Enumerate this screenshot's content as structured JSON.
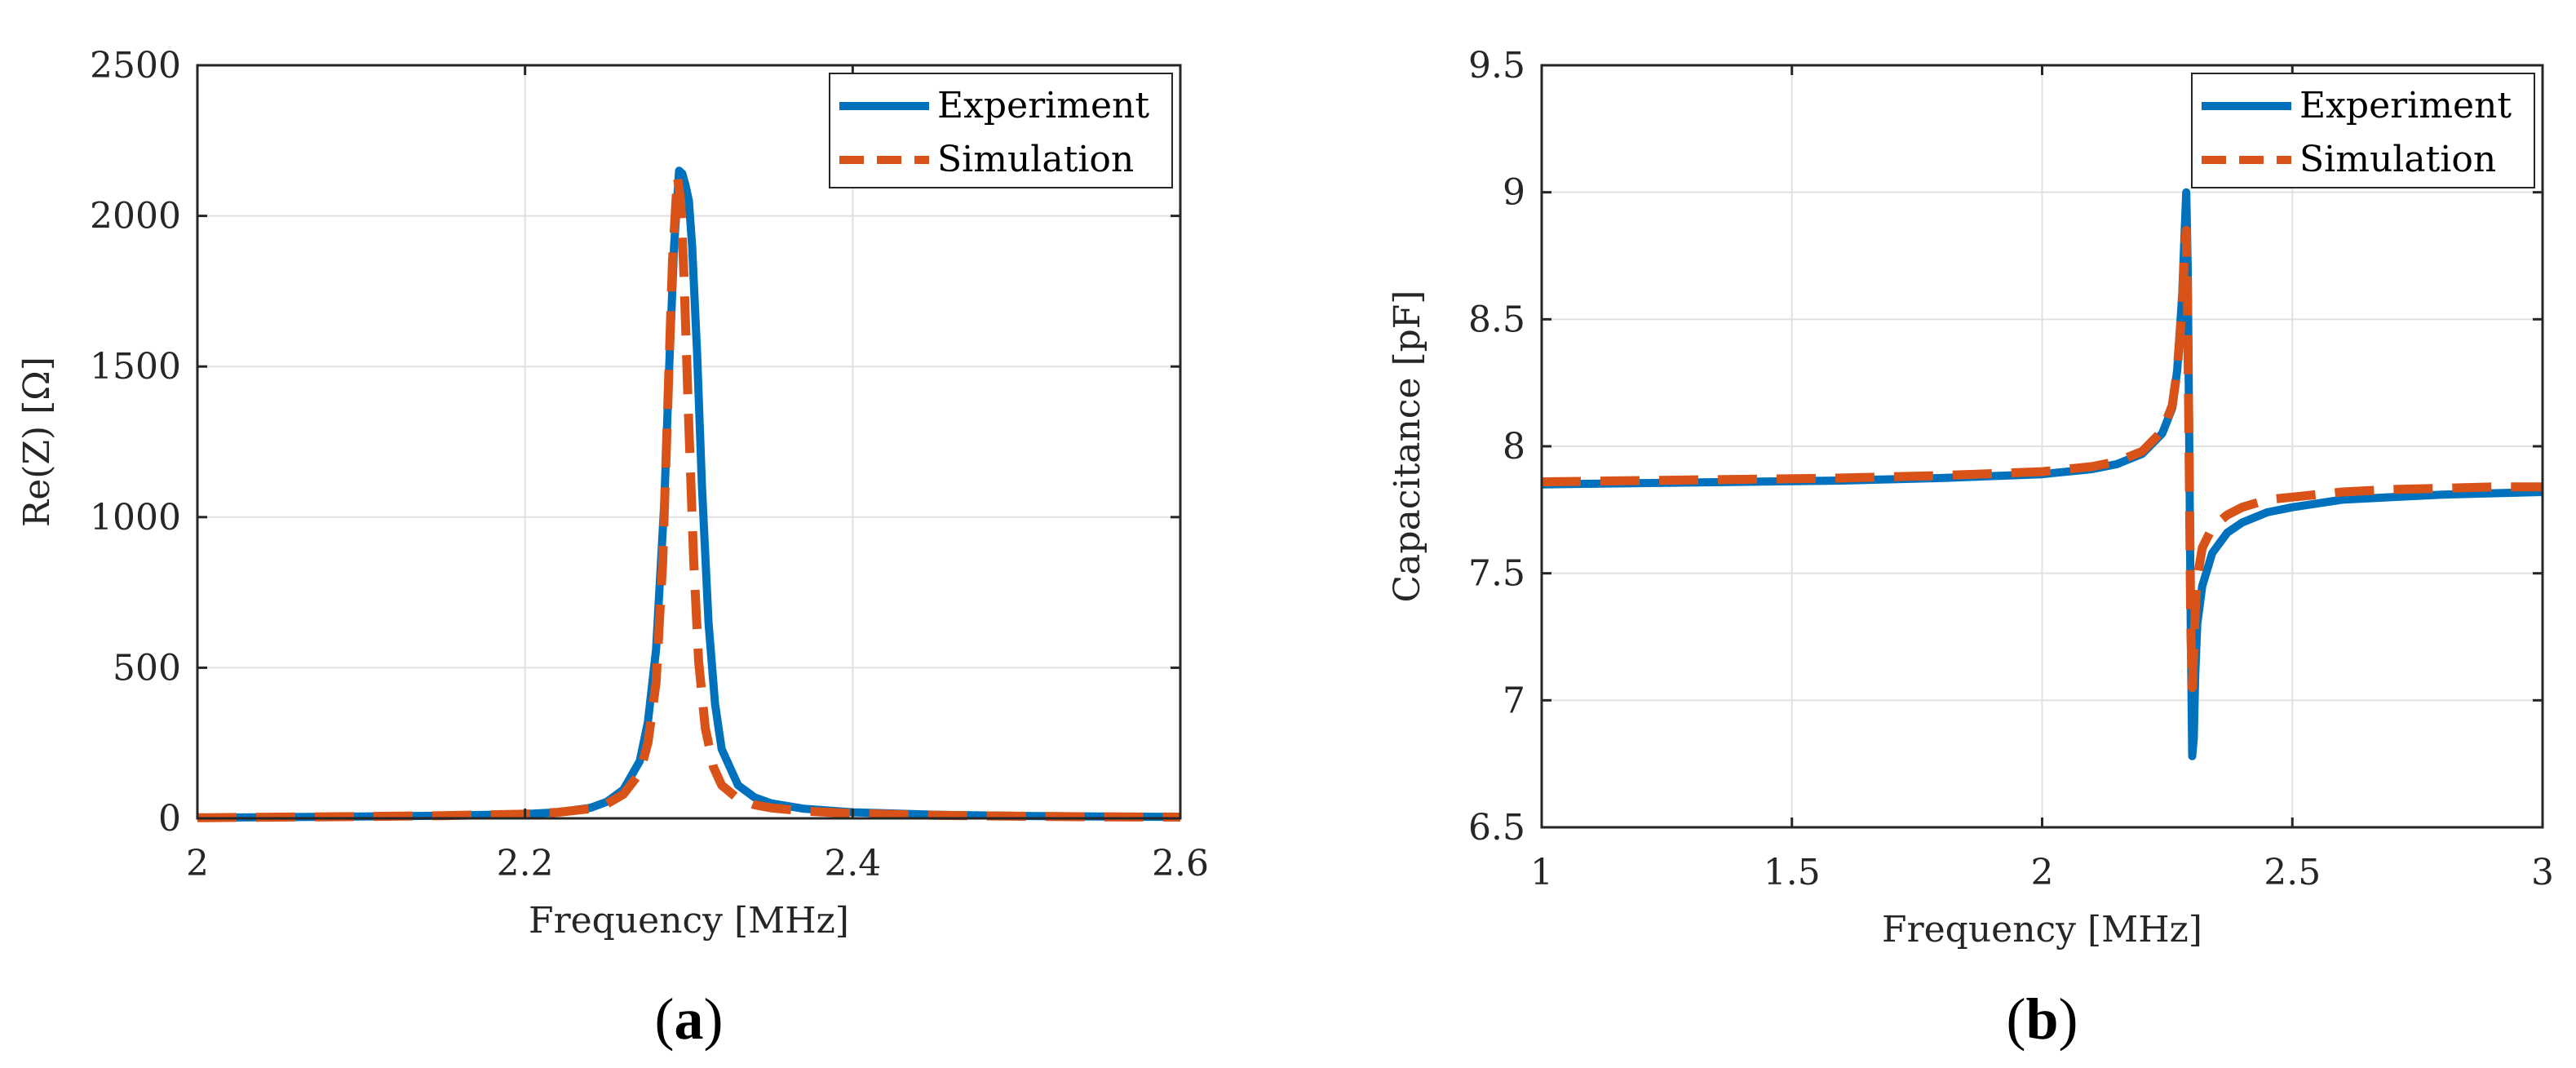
{
  "chart_data": [
    {
      "type": "line",
      "panel_label_open": "(",
      "panel_label": "a",
      "panel_label_close": ")",
      "xlabel": "Frequency [MHz]",
      "ylabel": "Re(Z) [Ω]",
      "xlim": [
        2,
        2.6
      ],
      "ylim": [
        0,
        2500
      ],
      "xticks": [
        2,
        2.2,
        2.4,
        2.6
      ],
      "xtick_labels": [
        "2",
        "2.2",
        "2.4",
        "2.6"
      ],
      "yticks": [
        0,
        500,
        1000,
        1500,
        2000,
        2500
      ],
      "ytick_labels": [
        "0",
        "500",
        "1000",
        "1500",
        "2000",
        "2500"
      ],
      "grid": true,
      "legend_position": "top-right",
      "series": [
        {
          "name": "Experiment",
          "color": "#0072BD",
          "style": "solid",
          "x": [
            2.0,
            2.05,
            2.1,
            2.15,
            2.2,
            2.22,
            2.24,
            2.25,
            2.26,
            2.27,
            2.275,
            2.28,
            2.285,
            2.288,
            2.291,
            2.294,
            2.296,
            2.298,
            2.3,
            2.302,
            2.305,
            2.308,
            2.312,
            2.316,
            2.32,
            2.33,
            2.34,
            2.35,
            2.37,
            2.4,
            2.45,
            2.5,
            2.55,
            2.6
          ],
          "y": [
            2,
            4,
            6,
            9,
            14,
            20,
            35,
            55,
            95,
            190,
            320,
            560,
            1050,
            1500,
            1900,
            2150,
            2140,
            2100,
            2050,
            1900,
            1550,
            1100,
            650,
            380,
            230,
            110,
            70,
            50,
            32,
            20,
            12,
            8,
            6,
            5
          ]
        },
        {
          "name": "Simulation",
          "color": "#D95319",
          "style": "dashed",
          "x": [
            2.0,
            2.05,
            2.1,
            2.15,
            2.2,
            2.22,
            2.24,
            2.25,
            2.26,
            2.27,
            2.275,
            2.28,
            2.284,
            2.287,
            2.29,
            2.293,
            2.295,
            2.297,
            2.3,
            2.303,
            2.306,
            2.31,
            2.315,
            2.32,
            2.33,
            2.34,
            2.35,
            2.37,
            2.4,
            2.45,
            2.5,
            2.55,
            2.6
          ],
          "y": [
            2,
            4,
            6,
            9,
            14,
            20,
            32,
            48,
            80,
            150,
            250,
            450,
            850,
            1350,
            1850,
            2130,
            2050,
            1800,
            1300,
            850,
            520,
            300,
            170,
            110,
            65,
            45,
            35,
            24,
            16,
            10,
            7,
            5,
            4
          ]
        }
      ]
    },
    {
      "type": "line",
      "panel_label_open": "(",
      "panel_label": "b",
      "panel_label_close": ")",
      "xlabel": "Frequency [MHz]",
      "ylabel": "Capacitance [pF]",
      "xlim": [
        1,
        3
      ],
      "ylim": [
        6.5,
        9.5
      ],
      "xticks": [
        1,
        1.5,
        2,
        2.5,
        3
      ],
      "xtick_labels": [
        "1",
        "1.5",
        "2",
        "2.5",
        "3"
      ],
      "yticks": [
        6.5,
        7,
        7.5,
        8,
        8.5,
        9,
        9.5
      ],
      "ytick_labels": [
        "6.5",
        "7",
        "7.5",
        "8",
        "8.5",
        "9",
        "9.5"
      ],
      "grid": true,
      "legend_position": "top-right",
      "series": [
        {
          "name": "Experiment",
          "color": "#0072BD",
          "style": "solid",
          "x": [
            1.0,
            1.2,
            1.4,
            1.6,
            1.8,
            2.0,
            2.1,
            2.15,
            2.2,
            2.24,
            2.26,
            2.27,
            2.28,
            2.285,
            2.288,
            2.291,
            2.294,
            2.297,
            2.3,
            2.303,
            2.306,
            2.31,
            2.32,
            2.34,
            2.37,
            2.4,
            2.45,
            2.5,
            2.6,
            2.7,
            2.8,
            2.9,
            3.0
          ],
          "y": [
            7.85,
            7.855,
            7.86,
            7.865,
            7.875,
            7.89,
            7.91,
            7.93,
            7.97,
            8.05,
            8.15,
            8.3,
            8.6,
            8.85,
            9.0,
            8.7,
            8.0,
            7.3,
            6.78,
            6.85,
            7.1,
            7.3,
            7.45,
            7.58,
            7.66,
            7.7,
            7.74,
            7.76,
            7.79,
            7.8,
            7.81,
            7.815,
            7.82
          ]
        },
        {
          "name": "Simulation",
          "color": "#D95319",
          "style": "dashed",
          "x": [
            1.0,
            1.2,
            1.4,
            1.6,
            1.8,
            2.0,
            2.1,
            2.15,
            2.2,
            2.24,
            2.26,
            2.27,
            2.28,
            2.285,
            2.288,
            2.291,
            2.294,
            2.297,
            2.3,
            2.303,
            2.306,
            2.31,
            2.32,
            2.34,
            2.37,
            2.4,
            2.45,
            2.5,
            2.6,
            2.7,
            2.8,
            2.9,
            3.0
          ],
          "y": [
            7.86,
            7.865,
            7.87,
            7.875,
            7.885,
            7.9,
            7.92,
            7.94,
            7.98,
            8.06,
            8.16,
            8.3,
            8.55,
            8.78,
            8.85,
            8.5,
            7.9,
            7.3,
            7.05,
            7.2,
            7.35,
            7.48,
            7.6,
            7.68,
            7.73,
            7.76,
            7.79,
            7.8,
            7.82,
            7.83,
            7.835,
            7.84,
            7.84
          ]
        }
      ]
    }
  ]
}
